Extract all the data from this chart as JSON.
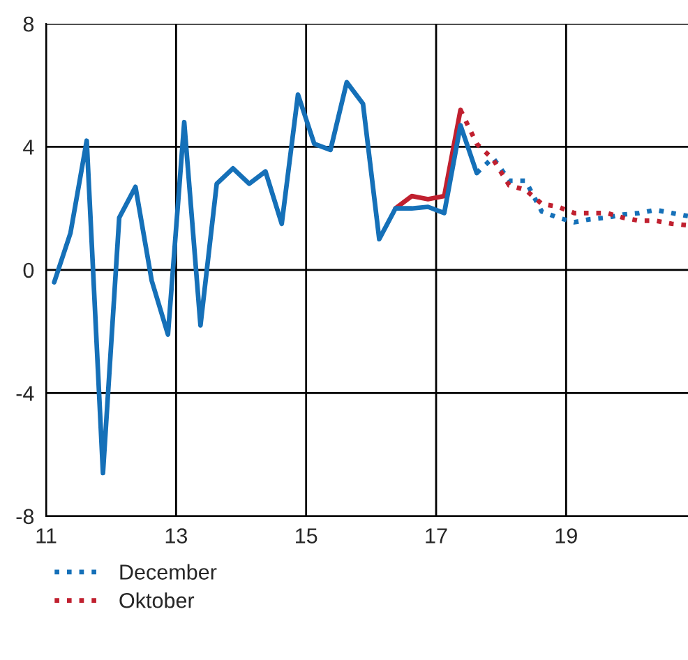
{
  "chart_data": {
    "type": "line",
    "series": [
      {
        "color": "#c0202f",
        "line_style": "solid",
        "x": [
          16.375,
          16.625,
          16.875,
          17.125,
          17.375
        ],
        "values": [
          2.0,
          2.4,
          2.3,
          2.4,
          5.2
        ]
      },
      {
        "color": "#1570b8",
        "line_style": "solid",
        "x": [
          11.125,
          11.375,
          11.625,
          11.875,
          12.125,
          12.375,
          12.625,
          12.875,
          13.125,
          13.375,
          13.625,
          13.875,
          14.125,
          14.375,
          14.625,
          14.875,
          15.125,
          15.375,
          15.625,
          15.875,
          16.125,
          16.375,
          16.625,
          16.875,
          17.125,
          17.375,
          17.625
        ],
        "values": [
          -0.4,
          1.2,
          4.2,
          -6.6,
          1.7,
          2.7,
          -0.35,
          -2.1,
          4.8,
          -1.8,
          2.8,
          3.3,
          2.8,
          3.2,
          1.5,
          5.7,
          4.1,
          3.9,
          6.1,
          5.4,
          1.0,
          2.0,
          2.0,
          2.05,
          1.85,
          4.7,
          3.15
        ]
      },
      {
        "name": "December",
        "color": "#1570b8",
        "line_style": "dotted",
        "x": [
          17.625,
          17.875,
          18.125,
          18.375,
          18.625,
          18.875,
          19.125,
          19.375,
          19.625,
          19.875,
          20.125,
          20.375,
          20.625,
          20.875
        ],
        "values": [
          3.15,
          3.65,
          2.9,
          2.9,
          1.9,
          1.7,
          1.55,
          1.65,
          1.7,
          1.8,
          1.85,
          1.95,
          1.85,
          1.75
        ]
      },
      {
        "name": "Oktober",
        "color": "#c0202f",
        "line_style": "dotted",
        "x": [
          17.375,
          17.625,
          17.875,
          18.125,
          18.375,
          18.625,
          18.875,
          19.125,
          19.375,
          19.625,
          19.875,
          20.125,
          20.375,
          20.625,
          20.875
        ],
        "values": [
          5.2,
          4.1,
          3.6,
          2.75,
          2.6,
          2.15,
          2.05,
          1.85,
          1.85,
          1.85,
          1.7,
          1.6,
          1.6,
          1.5,
          1.45
        ]
      }
    ],
    "xlim": [
      11,
      20.875
    ],
    "xticks": [
      11,
      13,
      15,
      17,
      19
    ],
    "ylim": [
      -8,
      8
    ],
    "yticks": [
      -8,
      -4,
      0,
      4,
      8
    ],
    "grid": true,
    "legend": "bottom left"
  }
}
